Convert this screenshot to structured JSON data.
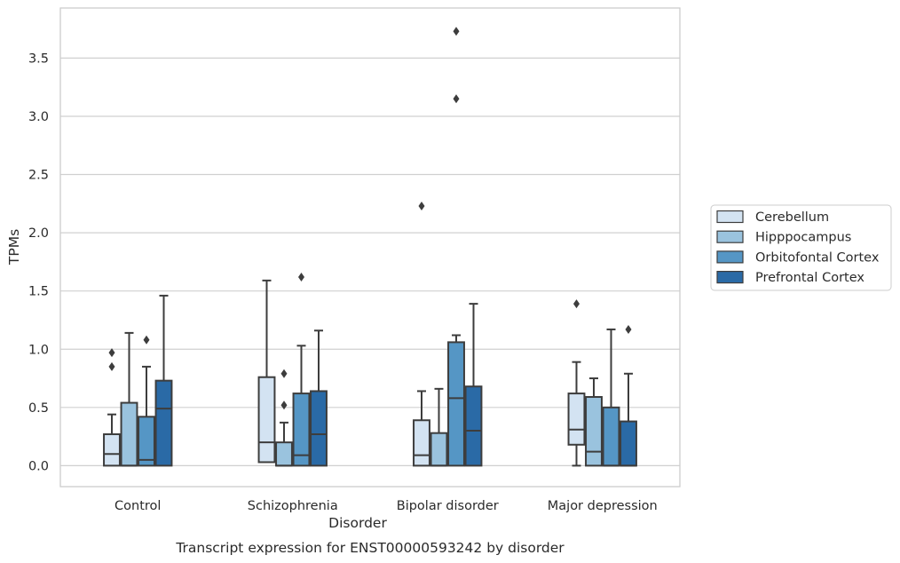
{
  "caption": "Transcript expression for ENST00000593242 by disorder",
  "chart_data": {
    "type": "box",
    "title": "",
    "xlabel": "Disorder",
    "ylabel": "TPMs",
    "ylim": [
      -0.18,
      3.93
    ],
    "yticks": [
      "0.0",
      "0.5",
      "1.0",
      "1.5",
      "2.0",
      "2.5",
      "3.0",
      "3.5"
    ],
    "grid": "horizontal",
    "legend_position": "right",
    "categories": [
      "Control",
      "Schizophrenia",
      "Bipolar disorder",
      "Major depression"
    ],
    "series": [
      {
        "name": "Cerebellum",
        "color": "#d3e3f2",
        "boxes": [
          {
            "whisker_low": 0.0,
            "q1": 0.0,
            "median": 0.1,
            "q3": 0.27,
            "whisker_high": 0.44,
            "outliers": [
              0.85,
              0.97
            ]
          },
          {
            "whisker_low": 0.03,
            "q1": 0.03,
            "median": 0.2,
            "q3": 0.76,
            "whisker_high": 1.59,
            "outliers": []
          },
          {
            "whisker_low": 0.0,
            "q1": 0.0,
            "median": 0.09,
            "q3": 0.39,
            "whisker_high": 0.64,
            "outliers": [
              2.23
            ]
          },
          {
            "whisker_low": 0.0,
            "q1": 0.18,
            "median": 0.31,
            "q3": 0.62,
            "whisker_high": 0.89,
            "outliers": [
              1.39
            ]
          }
        ]
      },
      {
        "name": "Hipppocampus",
        "color": "#9ac3de",
        "boxes": [
          {
            "whisker_low": 0.0,
            "q1": 0.0,
            "median": 0.0,
            "q3": 0.54,
            "whisker_high": 1.14,
            "outliers": []
          },
          {
            "whisker_low": 0.0,
            "q1": 0.0,
            "median": 0.0,
            "q3": 0.2,
            "whisker_high": 0.37,
            "outliers": [
              0.52,
              0.79
            ]
          },
          {
            "whisker_low": 0.0,
            "q1": 0.0,
            "median": 0.0,
            "q3": 0.28,
            "whisker_high": 0.66,
            "outliers": []
          },
          {
            "whisker_low": 0.0,
            "q1": 0.0,
            "median": 0.12,
            "q3": 0.59,
            "whisker_high": 0.75,
            "outliers": []
          }
        ]
      },
      {
        "name": "Orbitofontal Cortex",
        "color": "#5596c5",
        "boxes": [
          {
            "whisker_low": 0.0,
            "q1": 0.0,
            "median": 0.05,
            "q3": 0.42,
            "whisker_high": 0.85,
            "outliers": [
              1.08
            ]
          },
          {
            "whisker_low": 0.0,
            "q1": 0.0,
            "median": 0.09,
            "q3": 0.62,
            "whisker_high": 1.03,
            "outliers": [
              1.62
            ]
          },
          {
            "whisker_low": 0.0,
            "q1": 0.0,
            "median": 0.58,
            "q3": 1.06,
            "whisker_high": 1.12,
            "outliers": [
              3.15,
              3.73
            ]
          },
          {
            "whisker_low": 0.0,
            "q1": 0.0,
            "median": 0.0,
            "q3": 0.5,
            "whisker_high": 1.17,
            "outliers": []
          }
        ]
      },
      {
        "name": "Prefrontal Cortex",
        "color": "#2a6aa6",
        "boxes": [
          {
            "whisker_low": 0.0,
            "q1": 0.0,
            "median": 0.49,
            "q3": 0.73,
            "whisker_high": 1.46,
            "outliers": []
          },
          {
            "whisker_low": 0.0,
            "q1": 0.0,
            "median": 0.27,
            "q3": 0.64,
            "whisker_high": 1.16,
            "outliers": []
          },
          {
            "whisker_low": 0.0,
            "q1": 0.0,
            "median": 0.3,
            "q3": 0.68,
            "whisker_high": 1.39,
            "outliers": []
          },
          {
            "whisker_low": 0.0,
            "q1": 0.0,
            "median": 0.0,
            "q3": 0.38,
            "whisker_high": 0.79,
            "outliers": [
              1.17
            ]
          }
        ]
      }
    ]
  }
}
